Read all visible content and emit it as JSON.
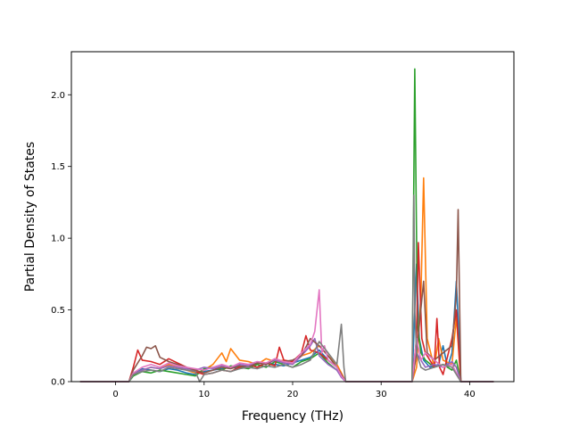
{
  "chart_data": {
    "type": "line",
    "title": "",
    "xlabel": "Frequency (THz)",
    "ylabel": "Partial Density of States",
    "xlim": [
      -5,
      45
    ],
    "ylim": [
      0,
      2.3
    ],
    "xticks": [
      0,
      10,
      20,
      30,
      40
    ],
    "xtick_labels": [
      "0",
      "10",
      "20",
      "30",
      "40"
    ],
    "yticks": [
      0.0,
      0.5,
      1.0,
      1.5,
      2.0
    ],
    "ytick_labels": [
      "0.0",
      "0.5",
      "1.0",
      "1.5",
      "2.0"
    ],
    "grid": false,
    "legend": "none",
    "colors": [
      "#1f77b4",
      "#ff7f0e",
      "#2ca02c",
      "#d62728",
      "#9467bd",
      "#8c564b",
      "#e377c2",
      "#7f7f7f"
    ],
    "series": [
      {
        "color": "#1f77b4",
        "x": [
          -4,
          0,
          1.5,
          2,
          3,
          4,
          5,
          6,
          7,
          8,
          9,
          10,
          11,
          12,
          13,
          14,
          15,
          16,
          17,
          18,
          19,
          20,
          21,
          22,
          23,
          24,
          25,
          25.5,
          26,
          33,
          33.5,
          33.8,
          34,
          34.3,
          34.8,
          35.5,
          36.5,
          37,
          37.5,
          38,
          38.5,
          38.8,
          39,
          42.7
        ],
        "y": [
          0,
          0,
          0,
          0.06,
          0.09,
          0.08,
          0.07,
          0.09,
          0.08,
          0.06,
          0.05,
          0.07,
          0.08,
          0.09,
          0.1,
          0.09,
          0.12,
          0.1,
          0.13,
          0.12,
          0.11,
          0.13,
          0.15,
          0.17,
          0.22,
          0.15,
          0.1,
          0.05,
          0,
          0,
          0,
          0.5,
          0.82,
          0.3,
          0.15,
          0.1,
          0.12,
          0.25,
          0.1,
          0.2,
          0.7,
          0.3,
          0,
          0
        ]
      },
      {
        "color": "#ff7f0e",
        "x": [
          -4,
          0,
          1.5,
          2,
          3,
          4,
          5,
          6,
          7,
          8,
          9,
          10,
          11,
          12,
          12.5,
          13,
          14,
          15,
          16,
          17,
          18,
          19,
          20,
          21,
          22,
          23,
          24,
          25,
          25.5,
          26,
          33,
          33.5,
          34,
          34.5,
          34.8,
          35.2,
          36,
          36.5,
          37,
          38,
          38.5,
          39,
          42.7
        ],
        "y": [
          0,
          0,
          0,
          0.05,
          0.08,
          0.1,
          0.09,
          0.12,
          0.1,
          0.08,
          0.06,
          0.08,
          0.12,
          0.2,
          0.14,
          0.23,
          0.15,
          0.14,
          0.12,
          0.16,
          0.14,
          0.15,
          0.12,
          0.18,
          0.2,
          0.25,
          0.18,
          0.12,
          0.06,
          0,
          0,
          0,
          0.1,
          0.6,
          1.42,
          0.3,
          0.1,
          0.3,
          0.15,
          0.12,
          0.45,
          0,
          0
        ]
      },
      {
        "color": "#2ca02c",
        "x": [
          -4,
          0,
          1.5,
          2,
          3,
          4,
          5,
          6,
          7,
          8,
          9,
          10,
          11,
          12,
          13,
          14,
          15,
          16,
          17,
          18,
          19,
          20,
          21,
          22,
          23,
          24,
          25,
          25.5,
          26,
          33,
          33.5,
          33.8,
          34.1,
          34.5,
          35,
          36,
          37,
          38,
          38.5,
          39,
          42.7
        ],
        "y": [
          0,
          0,
          0,
          0.04,
          0.07,
          0.06,
          0.08,
          0.07,
          0.06,
          0.05,
          0.04,
          0.09,
          0.1,
          0.08,
          0.11,
          0.1,
          0.09,
          0.12,
          0.1,
          0.14,
          0.12,
          0.1,
          0.14,
          0.16,
          0.2,
          0.13,
          0.08,
          0.04,
          0,
          0,
          0,
          2.18,
          0.4,
          0.2,
          0.15,
          0.1,
          0.12,
          0.08,
          0.15,
          0,
          0
        ]
      },
      {
        "color": "#d62728",
        "x": [
          -4,
          0,
          1.5,
          2,
          2.5,
          3,
          4,
          5,
          6,
          7,
          8,
          9,
          10,
          11,
          12,
          13,
          14,
          15,
          16,
          17,
          18,
          18.5,
          19,
          20,
          21,
          21.5,
          22,
          23,
          24,
          25,
          25.5,
          26,
          33,
          33.5,
          34,
          34.2,
          34.6,
          35,
          36,
          36.3,
          36.6,
          37,
          38,
          38.5,
          38.8,
          39,
          42.7
        ],
        "y": [
          0,
          0,
          0,
          0.1,
          0.22,
          0.15,
          0.14,
          0.12,
          0.16,
          0.13,
          0.1,
          0.07,
          0.05,
          0.06,
          0.08,
          0.07,
          0.1,
          0.12,
          0.1,
          0.13,
          0.11,
          0.24,
          0.15,
          0.14,
          0.2,
          0.32,
          0.22,
          0.2,
          0.15,
          0.1,
          0.05,
          0,
          0,
          0,
          0.3,
          0.97,
          0.3,
          0.2,
          0.1,
          0.44,
          0.1,
          0.05,
          0.3,
          0.5,
          0.2,
          0,
          0
        ]
      },
      {
        "color": "#9467bd",
        "x": [
          -4,
          0,
          1.5,
          2,
          3,
          4,
          5,
          6,
          7,
          8,
          9,
          10,
          11,
          12,
          13,
          14,
          15,
          16,
          17,
          18,
          19,
          20,
          21,
          22,
          22.5,
          23,
          24,
          25,
          25.5,
          26,
          33,
          33.5,
          34,
          34.5,
          35,
          36,
          37,
          38,
          38.5,
          39,
          42.7
        ],
        "y": [
          0,
          0,
          0,
          0.05,
          0.08,
          0.1,
          0.09,
          0.11,
          0.1,
          0.09,
          0.08,
          0.1,
          0.09,
          0.11,
          0.1,
          0.12,
          0.11,
          0.13,
          0.12,
          0.15,
          0.13,
          0.12,
          0.18,
          0.25,
          0.3,
          0.18,
          0.12,
          0.08,
          0.03,
          0,
          0,
          0,
          0.2,
          0.15,
          0.1,
          0.12,
          0.1,
          0.14,
          0.1,
          0,
          0
        ]
      },
      {
        "color": "#8c564b",
        "x": [
          -4,
          0,
          1.5,
          2,
          3,
          3.5,
          4,
          4.5,
          5,
          6,
          7,
          8,
          9,
          10,
          11,
          12,
          13,
          14,
          15,
          16,
          17,
          18,
          19,
          20,
          21,
          22,
          23,
          24,
          25,
          25.5,
          26,
          33,
          33.5,
          34,
          34.8,
          35.2,
          36,
          37,
          38,
          38.5,
          38.7,
          39,
          42.7
        ],
        "y": [
          0,
          0,
          0,
          0.08,
          0.18,
          0.24,
          0.23,
          0.25,
          0.17,
          0.14,
          0.12,
          0.1,
          0.08,
          0.06,
          0.08,
          0.1,
          0.09,
          0.11,
          0.1,
          0.13,
          0.12,
          0.16,
          0.14,
          0.15,
          0.18,
          0.3,
          0.25,
          0.18,
          0.1,
          0.05,
          0,
          0,
          0,
          0.2,
          0.7,
          0.2,
          0.15,
          0.2,
          0.25,
          0.6,
          1.2,
          0,
          0
        ]
      },
      {
        "color": "#e377c2",
        "x": [
          -4,
          0,
          1.5,
          2,
          3,
          4,
          5,
          6,
          7,
          8,
          9,
          10,
          11,
          12,
          13,
          14,
          15,
          16,
          17,
          18,
          19,
          20,
          21,
          22,
          22.5,
          23,
          23.3,
          23.6,
          24,
          25,
          25.5,
          26,
          33,
          33.5,
          34,
          34.5,
          35,
          36,
          37,
          38,
          39,
          42.7
        ],
        "y": [
          0,
          0,
          0,
          0.06,
          0.1,
          0.12,
          0.1,
          0.13,
          0.11,
          0.1,
          0.09,
          0.08,
          0.1,
          0.12,
          0.1,
          0.13,
          0.12,
          0.14,
          0.13,
          0.16,
          0.14,
          0.13,
          0.2,
          0.26,
          0.35,
          0.64,
          0.2,
          0.25,
          0.15,
          0.1,
          0.04,
          0,
          0,
          0,
          0.3,
          0.15,
          0.2,
          0.15,
          0.1,
          0.12,
          0,
          0
        ]
      },
      {
        "color": "#7f7f7f",
        "x": [
          -4,
          0,
          1.5,
          2,
          3,
          4,
          5,
          6,
          7,
          8,
          9,
          9.5,
          10,
          11,
          12,
          13,
          14,
          15,
          16,
          17,
          18,
          19,
          20,
          21,
          22,
          23,
          24,
          25,
          25.5,
          25.8,
          26,
          33,
          33.5,
          33.7,
          33.8,
          34,
          34.5,
          35,
          36,
          37,
          38,
          39,
          42.7
        ],
        "y": [
          0,
          0,
          0,
          0.05,
          0.07,
          0.08,
          0.07,
          0.1,
          0.09,
          0.08,
          0.07,
          0,
          0.05,
          0.06,
          0.08,
          0.07,
          0.09,
          0.1,
          0.09,
          0.11,
          0.1,
          0.12,
          0.1,
          0.12,
          0.15,
          0.28,
          0.2,
          0.12,
          0.4,
          0.1,
          0,
          0,
          0,
          1.3,
          0.5,
          0.2,
          0.1,
          0.08,
          0.1,
          0.12,
          0.1,
          0,
          0
        ]
      }
    ]
  }
}
